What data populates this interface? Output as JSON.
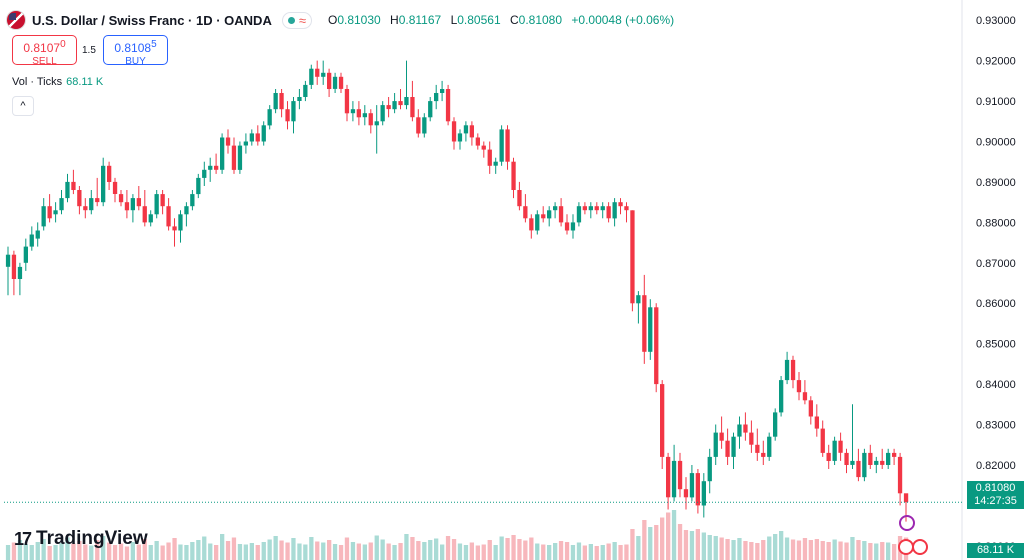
{
  "header": {
    "symbol": "U.S. Dollar / Swiss Franc · 1D · OANDA",
    "wave_icon": "≈",
    "ohlc": {
      "o_label": "O",
      "o": "0.81030",
      "h_label": "H",
      "h": "0.81167",
      "l_label": "L",
      "l": "0.80561",
      "c_label": "C",
      "c": "0.81080",
      "change": "+0.00048 (+0.06%)"
    }
  },
  "trade": {
    "sell_price": "0.8107",
    "sell_sup": "0",
    "sell_label": "SELL",
    "spread": "1.5",
    "buy_price": "0.8108",
    "buy_sup": "5",
    "buy_label": "BUY"
  },
  "volume_legend": {
    "label": "Vol · Ticks",
    "value": "68.11 K"
  },
  "collapse_glyph": "^",
  "logo": {
    "mark": "17",
    "text": "TradingView"
  },
  "last_price": {
    "value": "0.81080",
    "countdown": "14:27:35"
  },
  "volume_label": "68.11 K",
  "colors": {
    "up": "#089981",
    "down": "#f23645",
    "up_vol": "#a9dbd5",
    "down_vol": "#f7b7bc"
  },
  "chart_data": {
    "type": "candlestick",
    "y_ticks": [
      "0.93000",
      "0.92000",
      "0.91000",
      "0.90000",
      "0.89000",
      "0.88000",
      "0.87000",
      "0.86000",
      "0.85000",
      "0.84000",
      "0.83000",
      "0.82000",
      "0.81080",
      "0.80000"
    ],
    "ylim": [
      0.7965,
      0.935
    ],
    "candles": [
      [
        0.869,
        0.874,
        0.862,
        0.872
      ],
      [
        0.872,
        0.873,
        0.862,
        0.866
      ],
      [
        0.866,
        0.87,
        0.862,
        0.869
      ],
      [
        0.87,
        0.876,
        0.868,
        0.874
      ],
      [
        0.874,
        0.879,
        0.873,
        0.877
      ],
      [
        0.876,
        0.88,
        0.874,
        0.878
      ],
      [
        0.879,
        0.886,
        0.878,
        0.884
      ],
      [
        0.884,
        0.887,
        0.88,
        0.881
      ],
      [
        0.882,
        0.885,
        0.88,
        0.883
      ],
      [
        0.883,
        0.888,
        0.882,
        0.886
      ],
      [
        0.886,
        0.892,
        0.885,
        0.89
      ],
      [
        0.89,
        0.893,
        0.887,
        0.888
      ],
      [
        0.888,
        0.889,
        0.882,
        0.884
      ],
      [
        0.884,
        0.886,
        0.881,
        0.883
      ],
      [
        0.883,
        0.888,
        0.882,
        0.886
      ],
      [
        0.886,
        0.891,
        0.884,
        0.885
      ],
      [
        0.885,
        0.896,
        0.884,
        0.894
      ],
      [
        0.894,
        0.895,
        0.888,
        0.89
      ],
      [
        0.89,
        0.891,
        0.885,
        0.887
      ],
      [
        0.887,
        0.888,
        0.884,
        0.885
      ],
      [
        0.885,
        0.888,
        0.881,
        0.883
      ],
      [
        0.883,
        0.887,
        0.88,
        0.886
      ],
      [
        0.886,
        0.889,
        0.883,
        0.884
      ],
      [
        0.884,
        0.888,
        0.879,
        0.88
      ],
      [
        0.88,
        0.883,
        0.879,
        0.882
      ],
      [
        0.882,
        0.888,
        0.881,
        0.887
      ],
      [
        0.887,
        0.888,
        0.882,
        0.884
      ],
      [
        0.884,
        0.886,
        0.878,
        0.879
      ],
      [
        0.879,
        0.881,
        0.874,
        0.878
      ],
      [
        0.878,
        0.883,
        0.875,
        0.882
      ],
      [
        0.882,
        0.885,
        0.879,
        0.884
      ],
      [
        0.884,
        0.888,
        0.883,
        0.887
      ],
      [
        0.887,
        0.892,
        0.886,
        0.891
      ],
      [
        0.891,
        0.895,
        0.889,
        0.893
      ],
      [
        0.893,
        0.896,
        0.89,
        0.894
      ],
      [
        0.894,
        0.897,
        0.892,
        0.893
      ],
      [
        0.893,
        0.902,
        0.892,
        0.901
      ],
      [
        0.901,
        0.903,
        0.897,
        0.899
      ],
      [
        0.899,
        0.901,
        0.892,
        0.893
      ],
      [
        0.893,
        0.9,
        0.892,
        0.899
      ],
      [
        0.899,
        0.902,
        0.897,
        0.9
      ],
      [
        0.9,
        0.903,
        0.899,
        0.902
      ],
      [
        0.902,
        0.904,
        0.899,
        0.9
      ],
      [
        0.9,
        0.905,
        0.899,
        0.904
      ],
      [
        0.904,
        0.909,
        0.903,
        0.908
      ],
      [
        0.908,
        0.913,
        0.907,
        0.912
      ],
      [
        0.912,
        0.913,
        0.906,
        0.908
      ],
      [
        0.908,
        0.91,
        0.903,
        0.905
      ],
      [
        0.905,
        0.911,
        0.902,
        0.91
      ],
      [
        0.91,
        0.913,
        0.908,
        0.911
      ],
      [
        0.911,
        0.915,
        0.91,
        0.914
      ],
      [
        0.914,
        0.919,
        0.913,
        0.918
      ],
      [
        0.918,
        0.92,
        0.914,
        0.916
      ],
      [
        0.916,
        0.92,
        0.914,
        0.917
      ],
      [
        0.917,
        0.918,
        0.911,
        0.913
      ],
      [
        0.913,
        0.917,
        0.912,
        0.916
      ],
      [
        0.916,
        0.917,
        0.912,
        0.913
      ],
      [
        0.913,
        0.914,
        0.905,
        0.907
      ],
      [
        0.907,
        0.91,
        0.905,
        0.908
      ],
      [
        0.908,
        0.91,
        0.904,
        0.906
      ],
      [
        0.906,
        0.909,
        0.904,
        0.907
      ],
      [
        0.907,
        0.908,
        0.902,
        0.904
      ],
      [
        0.904,
        0.909,
        0.897,
        0.905
      ],
      [
        0.905,
        0.91,
        0.904,
        0.909
      ],
      [
        0.909,
        0.911,
        0.906,
        0.908
      ],
      [
        0.908,
        0.912,
        0.907,
        0.91
      ],
      [
        0.91,
        0.913,
        0.908,
        0.909
      ],
      [
        0.909,
        0.92,
        0.908,
        0.911
      ],
      [
        0.911,
        0.915,
        0.905,
        0.906
      ],
      [
        0.906,
        0.908,
        0.901,
        0.902
      ],
      [
        0.902,
        0.907,
        0.901,
        0.906
      ],
      [
        0.906,
        0.911,
        0.905,
        0.91
      ],
      [
        0.91,
        0.914,
        0.908,
        0.912
      ],
      [
        0.912,
        0.915,
        0.91,
        0.913
      ],
      [
        0.913,
        0.914,
        0.904,
        0.905
      ],
      [
        0.905,
        0.906,
        0.898,
        0.9
      ],
      [
        0.9,
        0.903,
        0.898,
        0.902
      ],
      [
        0.902,
        0.905,
        0.9,
        0.904
      ],
      [
        0.904,
        0.905,
        0.899,
        0.901
      ],
      [
        0.901,
        0.902,
        0.898,
        0.899
      ],
      [
        0.899,
        0.9,
        0.896,
        0.898
      ],
      [
        0.898,
        0.9,
        0.892,
        0.894
      ],
      [
        0.894,
        0.896,
        0.892,
        0.895
      ],
      [
        0.895,
        0.904,
        0.894,
        0.903
      ],
      [
        0.903,
        0.904,
        0.893,
        0.895
      ],
      [
        0.895,
        0.896,
        0.886,
        0.888
      ],
      [
        0.888,
        0.89,
        0.883,
        0.884
      ],
      [
        0.884,
        0.887,
        0.88,
        0.881
      ],
      [
        0.881,
        0.882,
        0.876,
        0.878
      ],
      [
        0.878,
        0.883,
        0.877,
        0.882
      ],
      [
        0.882,
        0.884,
        0.88,
        0.881
      ],
      [
        0.881,
        0.884,
        0.879,
        0.883
      ],
      [
        0.883,
        0.885,
        0.881,
        0.884
      ],
      [
        0.884,
        0.886,
        0.879,
        0.88
      ],
      [
        0.88,
        0.882,
        0.877,
        0.878
      ],
      [
        0.878,
        0.882,
        0.876,
        0.88
      ],
      [
        0.88,
        0.885,
        0.879,
        0.884
      ],
      [
        0.884,
        0.885,
        0.882,
        0.883
      ],
      [
        0.883,
        0.885,
        0.881,
        0.884
      ],
      [
        0.884,
        0.885,
        0.882,
        0.883
      ],
      [
        0.883,
        0.885,
        0.881,
        0.884
      ],
      [
        0.884,
        0.885,
        0.88,
        0.881
      ],
      [
        0.881,
        0.886,
        0.879,
        0.885
      ],
      [
        0.885,
        0.886,
        0.882,
        0.884
      ],
      [
        0.884,
        0.885,
        0.88,
        0.883
      ],
      [
        0.883,
        0.883,
        0.858,
        0.86
      ],
      [
        0.86,
        0.863,
        0.855,
        0.862
      ],
      [
        0.862,
        0.867,
        0.845,
        0.848
      ],
      [
        0.848,
        0.861,
        0.846,
        0.859
      ],
      [
        0.859,
        0.86,
        0.838,
        0.84
      ],
      [
        0.84,
        0.841,
        0.819,
        0.822
      ],
      [
        0.822,
        0.823,
        0.809,
        0.812
      ],
      [
        0.812,
        0.825,
        0.811,
        0.821
      ],
      [
        0.821,
        0.823,
        0.812,
        0.814
      ],
      [
        0.814,
        0.817,
        0.809,
        0.812
      ],
      [
        0.812,
        0.82,
        0.811,
        0.818
      ],
      [
        0.818,
        0.819,
        0.808,
        0.81
      ],
      [
        0.81,
        0.818,
        0.807,
        0.816
      ],
      [
        0.816,
        0.824,
        0.813,
        0.822
      ],
      [
        0.822,
        0.83,
        0.82,
        0.828
      ],
      [
        0.828,
        0.832,
        0.824,
        0.826
      ],
      [
        0.826,
        0.829,
        0.82,
        0.822
      ],
      [
        0.822,
        0.828,
        0.819,
        0.827
      ],
      [
        0.827,
        0.832,
        0.824,
        0.83
      ],
      [
        0.83,
        0.833,
        0.826,
        0.828
      ],
      [
        0.828,
        0.831,
        0.823,
        0.825
      ],
      [
        0.825,
        0.829,
        0.821,
        0.823
      ],
      [
        0.823,
        0.826,
        0.82,
        0.822
      ],
      [
        0.822,
        0.828,
        0.821,
        0.827
      ],
      [
        0.827,
        0.834,
        0.826,
        0.833
      ],
      [
        0.833,
        0.842,
        0.832,
        0.841
      ],
      [
        0.841,
        0.848,
        0.84,
        0.846
      ],
      [
        0.846,
        0.847,
        0.839,
        0.841
      ],
      [
        0.841,
        0.843,
        0.836,
        0.838
      ],
      [
        0.838,
        0.841,
        0.835,
        0.836
      ],
      [
        0.836,
        0.837,
        0.83,
        0.832
      ],
      [
        0.832,
        0.835,
        0.827,
        0.829
      ],
      [
        0.829,
        0.831,
        0.822,
        0.823
      ],
      [
        0.823,
        0.825,
        0.819,
        0.821
      ],
      [
        0.821,
        0.827,
        0.82,
        0.826
      ],
      [
        0.826,
        0.828,
        0.821,
        0.823
      ],
      [
        0.823,
        0.824,
        0.818,
        0.82
      ],
      [
        0.82,
        0.835,
        0.819,
        0.821
      ],
      [
        0.821,
        0.824,
        0.816,
        0.817
      ],
      [
        0.817,
        0.824,
        0.816,
        0.823
      ],
      [
        0.823,
        0.825,
        0.819,
        0.82
      ],
      [
        0.82,
        0.822,
        0.818,
        0.821
      ],
      [
        0.821,
        0.824,
        0.819,
        0.82
      ],
      [
        0.82,
        0.824,
        0.819,
        0.823
      ],
      [
        0.823,
        0.824,
        0.82,
        0.822
      ],
      [
        0.822,
        0.823,
        0.81,
        0.813
      ],
      [
        0.813,
        0.812,
        0.806,
        0.8108
      ]
    ],
    "volume": [
      0.3,
      0.35,
      0.4,
      0.32,
      0.3,
      0.36,
      0.42,
      0.28,
      0.3,
      0.34,
      0.45,
      0.33,
      0.38,
      0.31,
      0.29,
      0.4,
      0.48,
      0.35,
      0.3,
      0.33,
      0.27,
      0.36,
      0.31,
      0.42,
      0.3,
      0.38,
      0.29,
      0.35,
      0.44,
      0.31,
      0.3,
      0.36,
      0.4,
      0.47,
      0.33,
      0.3,
      0.52,
      0.38,
      0.45,
      0.32,
      0.31,
      0.34,
      0.3,
      0.36,
      0.41,
      0.48,
      0.39,
      0.35,
      0.44,
      0.33,
      0.31,
      0.46,
      0.37,
      0.35,
      0.4,
      0.32,
      0.3,
      0.45,
      0.36,
      0.33,
      0.31,
      0.35,
      0.49,
      0.41,
      0.33,
      0.3,
      0.34,
      0.52,
      0.46,
      0.38,
      0.36,
      0.4,
      0.43,
      0.31,
      0.48,
      0.42,
      0.33,
      0.3,
      0.35,
      0.29,
      0.31,
      0.4,
      0.3,
      0.47,
      0.44,
      0.5,
      0.42,
      0.39,
      0.45,
      0.33,
      0.31,
      0.3,
      0.34,
      0.38,
      0.36,
      0.3,
      0.35,
      0.29,
      0.32,
      0.28,
      0.3,
      0.33,
      0.36,
      0.3,
      0.31,
      0.62,
      0.48,
      0.8,
      0.66,
      0.7,
      0.85,
      0.95,
      1.0,
      0.72,
      0.6,
      0.58,
      0.62,
      0.55,
      0.5,
      0.48,
      0.45,
      0.42,
      0.4,
      0.44,
      0.38,
      0.36,
      0.34,
      0.4,
      0.47,
      0.52,
      0.58,
      0.45,
      0.41,
      0.39,
      0.44,
      0.4,
      0.42,
      0.38,
      0.36,
      0.41,
      0.37,
      0.35,
      0.46,
      0.4,
      0.38,
      0.34,
      0.33,
      0.36,
      0.35,
      0.32,
      0.48,
      0.45
    ]
  }
}
